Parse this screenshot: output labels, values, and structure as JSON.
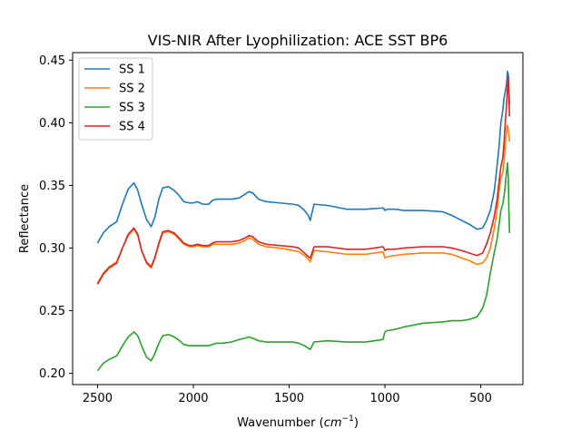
{
  "chart_data": {
    "type": "line",
    "title": "VIS-NIR After Lyophilization: ACE SST BP6",
    "xlabel": "Wavenumber",
    "xlabel_unit_base": "cm",
    "xlabel_unit_exp": "−1",
    "ylabel": "Reflectance",
    "x_inverted": true,
    "xlim": [
      2630,
      280
    ],
    "ylim": [
      0.191,
      0.456
    ],
    "xticks": [
      2500,
      2000,
      1500,
      1000,
      500
    ],
    "xtick_labels": [
      "2500",
      "2000",
      "1500",
      "1000",
      "500"
    ],
    "yticks": [
      0.2,
      0.25,
      0.3,
      0.35,
      0.4,
      0.45
    ],
    "ytick_labels": [
      "0.20",
      "0.25",
      "0.30",
      "0.35",
      "0.40",
      "0.45"
    ],
    "grid": false,
    "legend_position": "top-left",
    "series": [
      {
        "name": "SS 1",
        "color": "#1f77b4",
        "x": [
          2500,
          2470,
          2440,
          2400,
          2370,
          2340,
          2310,
          2290,
          2270,
          2245,
          2220,
          2200,
          2180,
          2160,
          2130,
          2100,
          2080,
          2050,
          2020,
          2000,
          1980,
          1950,
          1920,
          1900,
          1880,
          1850,
          1800,
          1760,
          1730,
          1710,
          1690,
          1660,
          1620,
          1550,
          1480,
          1450,
          1420,
          1400,
          1390,
          1370,
          1300,
          1200,
          1100,
          1010,
          1000,
          990,
          950,
          900,
          800,
          700,
          650,
          600,
          560,
          520,
          490,
          470,
          450,
          430,
          415,
          405,
          395,
          385,
          378,
          372,
          366,
          360,
          356,
          353,
          350
        ],
        "y": [
          0.304,
          0.312,
          0.317,
          0.321,
          0.335,
          0.347,
          0.352,
          0.346,
          0.335,
          0.323,
          0.317,
          0.325,
          0.339,
          0.348,
          0.349,
          0.346,
          0.343,
          0.337,
          0.336,
          0.336,
          0.337,
          0.335,
          0.335,
          0.338,
          0.339,
          0.339,
          0.339,
          0.34,
          0.343,
          0.345,
          0.344,
          0.339,
          0.337,
          0.336,
          0.335,
          0.334,
          0.33,
          0.326,
          0.322,
          0.335,
          0.334,
          0.331,
          0.331,
          0.332,
          0.33,
          0.331,
          0.331,
          0.33,
          0.33,
          0.329,
          0.326,
          0.322,
          0.319,
          0.315,
          0.316,
          0.322,
          0.33,
          0.345,
          0.365,
          0.38,
          0.4,
          0.41,
          0.42,
          0.425,
          0.43,
          0.441,
          0.438,
          0.425,
          0.415
        ]
      },
      {
        "name": "SS 2",
        "color": "#ff7f0e",
        "x": [
          2500,
          2470,
          2440,
          2400,
          2370,
          2340,
          2310,
          2290,
          2270,
          2245,
          2220,
          2200,
          2180,
          2160,
          2130,
          2100,
          2080,
          2050,
          2020,
          2000,
          1980,
          1950,
          1920,
          1900,
          1880,
          1850,
          1800,
          1760,
          1730,
          1710,
          1690,
          1660,
          1620,
          1550,
          1480,
          1450,
          1420,
          1400,
          1390,
          1370,
          1300,
          1200,
          1100,
          1010,
          1000,
          990,
          950,
          900,
          800,
          700,
          650,
          600,
          560,
          520,
          490,
          470,
          450,
          430,
          415,
          405,
          395,
          385,
          378,
          372,
          366,
          360,
          356,
          353,
          350
        ],
        "y": [
          0.272,
          0.28,
          0.285,
          0.289,
          0.3,
          0.31,
          0.315,
          0.31,
          0.298,
          0.288,
          0.284,
          0.292,
          0.303,
          0.312,
          0.313,
          0.311,
          0.308,
          0.303,
          0.301,
          0.301,
          0.302,
          0.301,
          0.301,
          0.303,
          0.303,
          0.303,
          0.303,
          0.304,
          0.306,
          0.308,
          0.307,
          0.303,
          0.301,
          0.3,
          0.298,
          0.297,
          0.294,
          0.291,
          0.289,
          0.298,
          0.297,
          0.295,
          0.295,
          0.297,
          0.292,
          0.293,
          0.294,
          0.295,
          0.296,
          0.296,
          0.295,
          0.292,
          0.29,
          0.287,
          0.288,
          0.292,
          0.3,
          0.315,
          0.33,
          0.345,
          0.356,
          0.36,
          0.37,
          0.382,
          0.392,
          0.398,
          0.393,
          0.39,
          0.385
        ]
      },
      {
        "name": "SS 3",
        "color": "#2ca02c",
        "x": [
          2500,
          2470,
          2440,
          2400,
          2370,
          2340,
          2310,
          2290,
          2270,
          2245,
          2220,
          2200,
          2180,
          2160,
          2130,
          2100,
          2080,
          2050,
          2020,
          2000,
          1980,
          1950,
          1920,
          1900,
          1880,
          1850,
          1800,
          1760,
          1730,
          1710,
          1690,
          1660,
          1620,
          1550,
          1480,
          1450,
          1420,
          1400,
          1390,
          1370,
          1300,
          1200,
          1100,
          1010,
          1000,
          990,
          950,
          900,
          800,
          700,
          650,
          600,
          560,
          520,
          490,
          470,
          450,
          430,
          415,
          405,
          395,
          385,
          378,
          372,
          366,
          360,
          356,
          353,
          350
        ],
        "y": [
          0.202,
          0.208,
          0.211,
          0.214,
          0.222,
          0.229,
          0.233,
          0.23,
          0.222,
          0.213,
          0.21,
          0.216,
          0.224,
          0.23,
          0.231,
          0.229,
          0.227,
          0.223,
          0.222,
          0.222,
          0.222,
          0.222,
          0.222,
          0.223,
          0.224,
          0.224,
          0.225,
          0.227,
          0.228,
          0.229,
          0.228,
          0.226,
          0.225,
          0.225,
          0.225,
          0.224,
          0.222,
          0.22,
          0.219,
          0.225,
          0.226,
          0.225,
          0.225,
          0.227,
          0.233,
          0.234,
          0.235,
          0.237,
          0.24,
          0.241,
          0.242,
          0.242,
          0.243,
          0.245,
          0.252,
          0.262,
          0.28,
          0.296,
          0.307,
          0.318,
          0.33,
          0.335,
          0.342,
          0.35,
          0.36,
          0.368,
          0.355,
          0.33,
          0.312
        ]
      },
      {
        "name": "SS 4",
        "color": "#d62728",
        "x": [
          2500,
          2470,
          2440,
          2400,
          2370,
          2340,
          2310,
          2290,
          2270,
          2245,
          2220,
          2200,
          2180,
          2160,
          2130,
          2100,
          2080,
          2050,
          2020,
          2000,
          1980,
          1950,
          1920,
          1900,
          1880,
          1850,
          1800,
          1760,
          1730,
          1710,
          1690,
          1660,
          1620,
          1550,
          1480,
          1450,
          1420,
          1400,
          1390,
          1370,
          1300,
          1200,
          1100,
          1010,
          1000,
          990,
          950,
          900,
          800,
          700,
          650,
          600,
          560,
          520,
          490,
          470,
          450,
          430,
          415,
          405,
          395,
          385,
          378,
          372,
          366,
          360,
          356,
          353,
          350
        ],
        "y": [
          0.271,
          0.279,
          0.284,
          0.288,
          0.3,
          0.311,
          0.316,
          0.311,
          0.298,
          0.289,
          0.285,
          0.293,
          0.304,
          0.313,
          0.314,
          0.312,
          0.309,
          0.304,
          0.302,
          0.302,
          0.303,
          0.302,
          0.302,
          0.304,
          0.305,
          0.305,
          0.305,
          0.306,
          0.308,
          0.31,
          0.309,
          0.305,
          0.303,
          0.302,
          0.301,
          0.3,
          0.296,
          0.293,
          0.292,
          0.301,
          0.301,
          0.299,
          0.299,
          0.301,
          0.298,
          0.299,
          0.299,
          0.3,
          0.301,
          0.301,
          0.3,
          0.298,
          0.296,
          0.294,
          0.296,
          0.303,
          0.312,
          0.325,
          0.338,
          0.352,
          0.365,
          0.372,
          0.385,
          0.4,
          0.412,
          0.43,
          0.437,
          0.42,
          0.405
        ]
      }
    ]
  }
}
